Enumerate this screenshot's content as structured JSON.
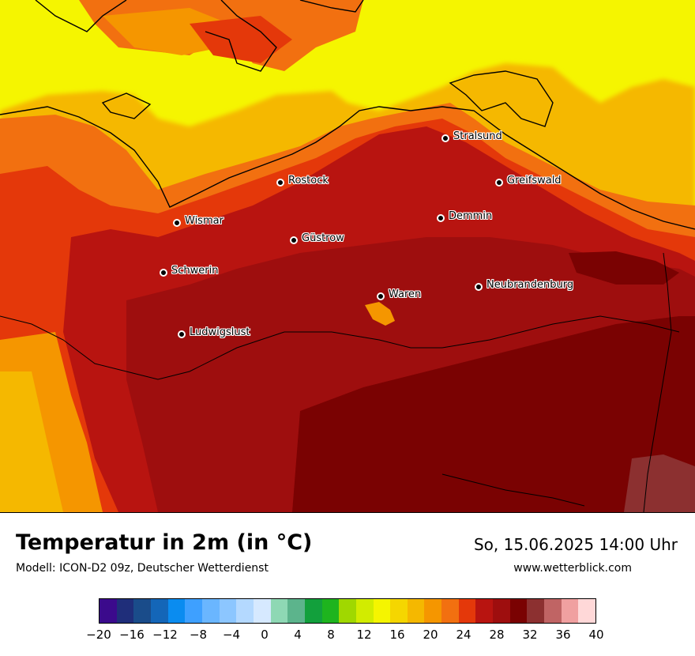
{
  "map": {
    "cities": [
      {
        "name": "Stralsund"
      },
      {
        "name": "Rostock"
      },
      {
        "name": "Greifswald"
      },
      {
        "name": "Wismar"
      },
      {
        "name": "Demmin"
      },
      {
        "name": "Güstrow"
      },
      {
        "name": "Schwerin"
      },
      {
        "name": "Neubrandenburg"
      },
      {
        "name": "Waren"
      },
      {
        "name": "Ludwigslust"
      }
    ]
  },
  "header": {
    "title": "Temperatur in 2m (in °C)",
    "subtitle": "Modell: ICON-D2 09z, Deutscher Wetterdienst",
    "datetime": "So, 15.06.2025 14:00 Uhr",
    "website": "www.wetterblick.com"
  },
  "legend": {
    "colors": [
      "#3b0a8c",
      "#1f2e7a",
      "#1a4c8a",
      "#1466b8",
      "#0a8cf0",
      "#3ea0ff",
      "#6ab6ff",
      "#8cc6ff",
      "#b4d9ff",
      "#d6e9ff",
      "#8ed8b4",
      "#5cb48c",
      "#12a03c",
      "#1eb41e",
      "#a0d800",
      "#d2ec00",
      "#f5f500",
      "#f5d600",
      "#f5b800",
      "#f59600",
      "#f27010",
      "#e4380a",
      "#b81410",
      "#9e0e0e",
      "#7a0202",
      "#8c3030",
      "#c06464",
      "#f0a0a0",
      "#ffd8d8"
    ],
    "ticks": [
      "−20",
      "−16",
      "−12",
      "−8",
      "−4",
      "0",
      "4",
      "8",
      "12",
      "16",
      "20",
      "24",
      "28",
      "32",
      "36",
      "40"
    ]
  }
}
